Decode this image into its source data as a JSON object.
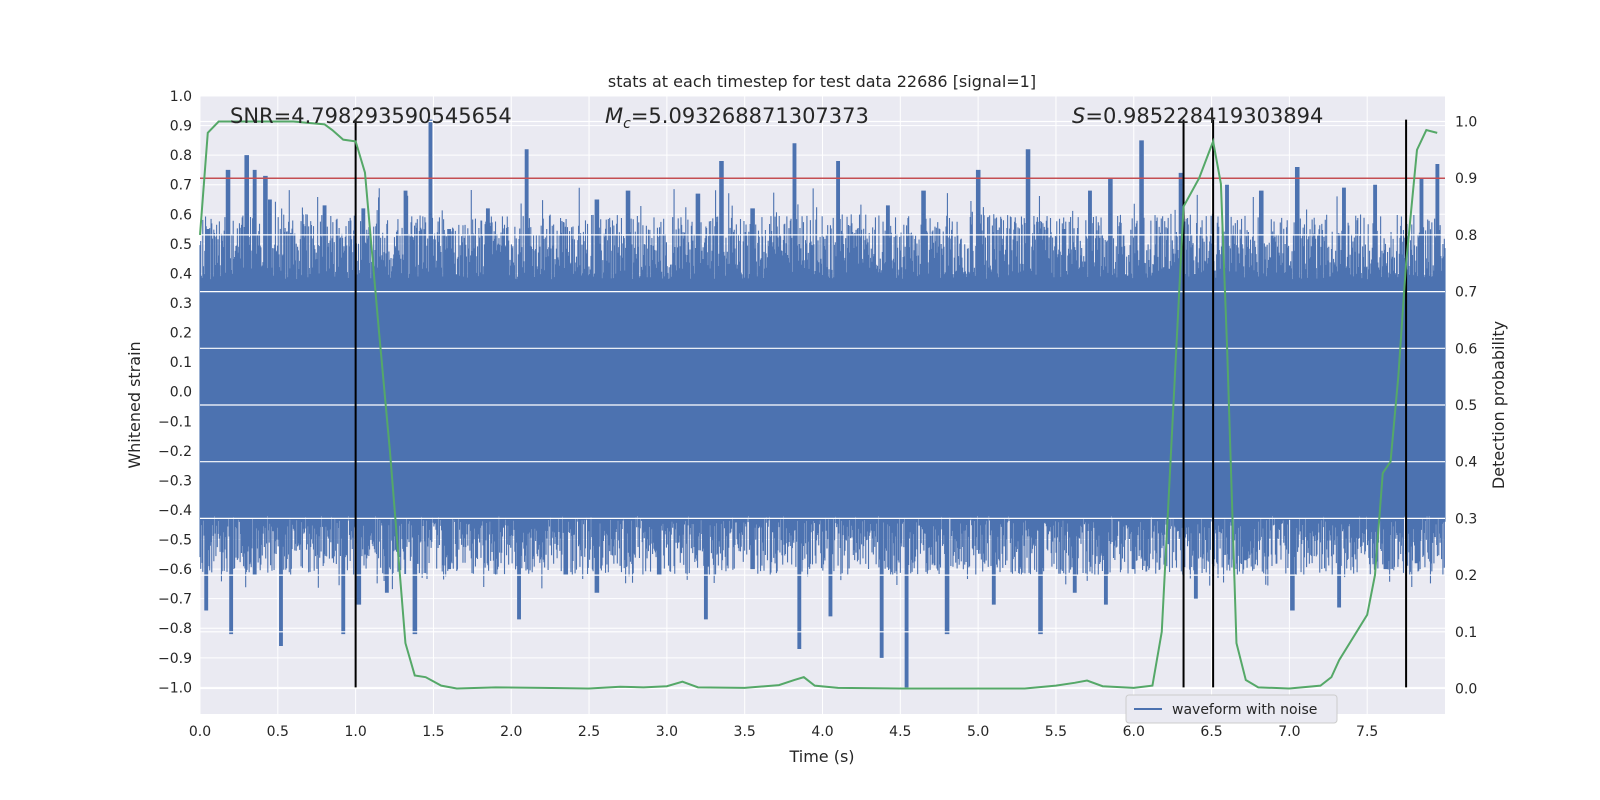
{
  "chart_data": {
    "type": "line",
    "title": "stats at each timestep for test data 22686 [signal=1]",
    "xlabel": "Time (s)",
    "ylabel_left": "Whitened strain",
    "ylabel_right": "Detection probability",
    "xlim": [
      0.0,
      8.0
    ],
    "ylim_left": [
      -1.09,
      1.0
    ],
    "ylim_right": [
      -0.045,
      1.045
    ],
    "x_ticks": [
      "0.0",
      "0.5",
      "1.0",
      "1.5",
      "2.0",
      "2.5",
      "3.0",
      "3.5",
      "4.0",
      "4.5",
      "5.0",
      "5.5",
      "6.0",
      "6.5",
      "7.0",
      "7.5"
    ],
    "y_left_ticks": [
      "1.0",
      "0.9",
      "0.8",
      "0.7",
      "0.6",
      "0.5",
      "0.4",
      "0.3",
      "0.2",
      "0.1",
      "0.0",
      "-0.1",
      "-0.2",
      "-0.3",
      "-0.4",
      "-0.5",
      "-0.6",
      "-0.7",
      "-0.8",
      "-0.9",
      "-1.0"
    ],
    "y_right_ticks": [
      "1.0",
      "0.9",
      "0.8",
      "0.7",
      "0.6",
      "0.5",
      "0.4",
      "0.3",
      "0.2",
      "0.1",
      "0.0"
    ],
    "grid": true,
    "legend_placement": "lower-right",
    "annotations": {
      "snr": "SNR=4.798293590545654",
      "mc_prefix": "M",
      "mc_sub": "c",
      "mc_value": "=5.093268871307373",
      "s_prefix": "S",
      "s_value": "=0.985228419303894"
    },
    "threshold": {
      "axis": "right",
      "value": 0.9,
      "color": "#c44e52"
    },
    "vertical_lines_x": [
      1.0,
      6.32,
      6.51,
      7.75
    ],
    "vertical_lines_range_left": [
      -1.0,
      0.92
    ],
    "series": [
      {
        "name": "waveform with noise",
        "axis": "left",
        "color": "#4c72b0",
        "kind": "noise-envelope",
        "core_band": [
          -0.42,
          0.38
        ],
        "peaks_positive": [
          [
            0.05,
            0.55
          ],
          [
            0.18,
            0.75
          ],
          [
            0.3,
            0.8
          ],
          [
            0.35,
            0.75
          ],
          [
            0.42,
            0.73
          ],
          [
            0.45,
            0.65
          ],
          [
            0.8,
            0.63
          ],
          [
            1.05,
            0.62
          ],
          [
            1.32,
            0.68
          ],
          [
            1.48,
            0.92
          ],
          [
            1.6,
            0.55
          ],
          [
            1.85,
            0.62
          ],
          [
            2.1,
            0.82
          ],
          [
            2.55,
            0.65
          ],
          [
            2.75,
            0.68
          ],
          [
            3.2,
            0.67
          ],
          [
            3.35,
            0.78
          ],
          [
            3.55,
            0.62
          ],
          [
            3.82,
            0.84
          ],
          [
            4.1,
            0.78
          ],
          [
            4.42,
            0.63
          ],
          [
            4.65,
            0.68
          ],
          [
            5.0,
            0.75
          ],
          [
            5.32,
            0.82
          ],
          [
            5.55,
            0.55
          ],
          [
            5.72,
            0.68
          ],
          [
            5.85,
            0.72
          ],
          [
            6.05,
            0.85
          ],
          [
            6.3,
            0.74
          ],
          [
            6.6,
            0.7
          ],
          [
            6.82,
            0.68
          ],
          [
            7.05,
            0.76
          ],
          [
            7.35,
            0.69
          ],
          [
            7.55,
            0.7
          ],
          [
            7.85,
            0.72
          ],
          [
            7.95,
            0.77
          ]
        ],
        "peaks_negative": [
          [
            0.04,
            -0.74
          ],
          [
            0.2,
            -0.82
          ],
          [
            0.35,
            -0.62
          ],
          [
            0.52,
            -0.86
          ],
          [
            0.92,
            -0.82
          ],
          [
            1.02,
            -0.72
          ],
          [
            1.2,
            -0.68
          ],
          [
            1.38,
            -0.82
          ],
          [
            1.6,
            -0.6
          ],
          [
            2.05,
            -0.77
          ],
          [
            2.35,
            -0.62
          ],
          [
            2.55,
            -0.68
          ],
          [
            2.95,
            -0.62
          ],
          [
            3.25,
            -0.77
          ],
          [
            3.55,
            -0.6
          ],
          [
            3.85,
            -0.87
          ],
          [
            4.05,
            -0.76
          ],
          [
            4.38,
            -0.9
          ],
          [
            4.54,
            -1.0
          ],
          [
            4.8,
            -0.82
          ],
          [
            5.1,
            -0.72
          ],
          [
            5.4,
            -0.82
          ],
          [
            5.62,
            -0.68
          ],
          [
            5.82,
            -0.72
          ],
          [
            6.0,
            -0.6
          ],
          [
            6.4,
            -0.7
          ],
          [
            6.72,
            -0.57
          ],
          [
            7.02,
            -0.74
          ],
          [
            7.32,
            -0.73
          ],
          [
            7.62,
            -0.6
          ],
          [
            7.82,
            -0.58
          ]
        ]
      },
      {
        "name": "detection-probability",
        "axis": "right",
        "color": "#55a868",
        "x": [
          0.0,
          0.05,
          0.12,
          0.2,
          0.4,
          0.6,
          0.8,
          0.85,
          0.92,
          1.0,
          1.06,
          1.15,
          1.22,
          1.32,
          1.38,
          1.45,
          1.55,
          1.65,
          1.9,
          2.2,
          2.5,
          2.7,
          2.85,
          3.0,
          3.1,
          3.2,
          3.5,
          3.72,
          3.82,
          3.88,
          3.95,
          4.1,
          4.5,
          5.0,
          5.3,
          5.5,
          5.62,
          5.7,
          5.8,
          6.0,
          6.12,
          6.18,
          6.24,
          6.32,
          6.42,
          6.51,
          6.56,
          6.6,
          6.66,
          6.72,
          6.8,
          7.0,
          7.2,
          7.27,
          7.32,
          7.5,
          7.55,
          7.6,
          7.65,
          7.7,
          7.75,
          7.82,
          7.88,
          7.95
        ],
        "y": [
          0.8,
          0.98,
          1.0,
          1.0,
          1.0,
          1.0,
          0.995,
          0.985,
          0.968,
          0.965,
          0.91,
          0.63,
          0.42,
          0.08,
          0.023,
          0.02,
          0.005,
          0.0,
          0.002,
          0.001,
          0.0,
          0.003,
          0.002,
          0.004,
          0.012,
          0.002,
          0.001,
          0.006,
          0.015,
          0.02,
          0.005,
          0.001,
          0.0,
          0.0,
          0.0,
          0.005,
          0.01,
          0.014,
          0.004,
          0.001,
          0.005,
          0.1,
          0.42,
          0.85,
          0.9,
          0.965,
          0.89,
          0.6,
          0.08,
          0.015,
          0.002,
          0.0,
          0.005,
          0.02,
          0.05,
          0.13,
          0.2,
          0.38,
          0.4,
          0.55,
          0.75,
          0.95,
          0.985,
          0.98
        ]
      }
    ]
  }
}
